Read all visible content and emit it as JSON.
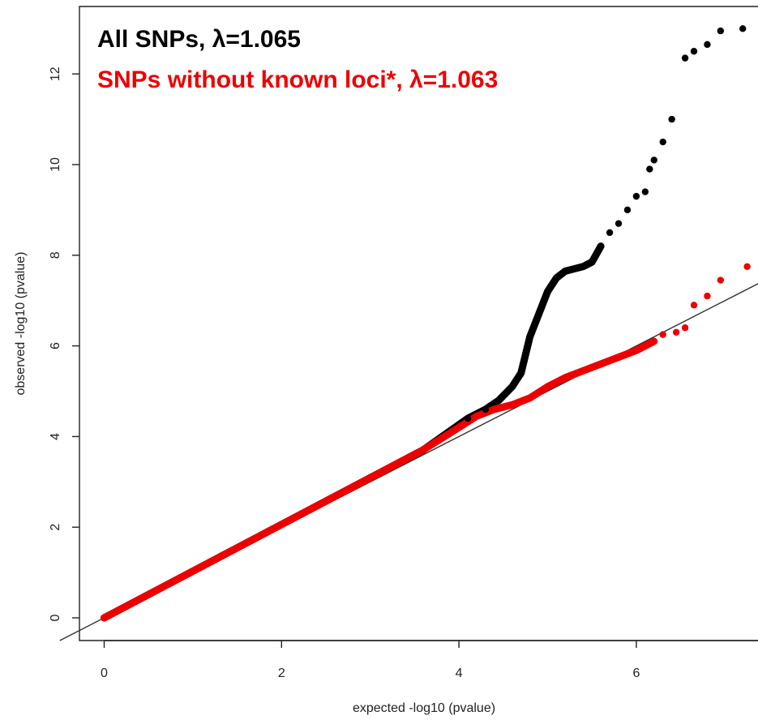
{
  "chart_data": {
    "type": "scatter",
    "xlabel": "expected -log10 (pvalue)",
    "ylabel": "observed -log10 (pvalue)",
    "xlim": [
      -0.5,
      7.4
    ],
    "ylim": [
      -0.5,
      13.3
    ],
    "x_ticks": [
      "0",
      "2",
      "4",
      "6"
    ],
    "y_ticks": [
      "0",
      "2",
      "4",
      "6",
      "8",
      "10",
      "12"
    ],
    "reference_line": "y = x",
    "grid": false,
    "legend_position": "top-left",
    "series": [
      {
        "name": "All SNPs, λ=1.065",
        "color": "#000000",
        "x": [
          4.1,
          4.3,
          4.45,
          4.6,
          4.7,
          4.8,
          4.9,
          5.0,
          5.1,
          5.2,
          5.3,
          5.4,
          5.5,
          5.6,
          5.7,
          5.8,
          5.9,
          6.0,
          6.1,
          6.15,
          6.2,
          6.3,
          6.4,
          6.55,
          6.65,
          6.8,
          6.95,
          7.2
        ],
        "y": [
          4.4,
          4.6,
          4.8,
          5.1,
          5.4,
          6.2,
          6.7,
          7.2,
          7.5,
          7.65,
          7.7,
          7.75,
          7.85,
          8.2,
          8.5,
          8.7,
          9.0,
          9.3,
          9.4,
          9.9,
          10.1,
          10.5,
          11.0,
          12.35,
          12.5,
          12.65,
          12.95,
          13.0
        ]
      },
      {
        "name": "SNPs without known loci*, λ=1.063",
        "color": "#ee0000",
        "x": [
          4.0,
          4.2,
          4.4,
          4.6,
          4.8,
          5.0,
          5.2,
          5.4,
          5.6,
          5.8,
          6.0,
          6.1,
          6.2,
          6.3,
          6.45,
          6.55,
          6.65,
          6.8,
          6.95,
          7.25
        ],
        "y": [
          4.2,
          4.45,
          4.6,
          4.7,
          4.85,
          5.1,
          5.3,
          5.45,
          5.6,
          5.75,
          5.9,
          6.0,
          6.1,
          6.25,
          6.3,
          6.4,
          6.9,
          7.1,
          7.45,
          7.75
        ]
      }
    ]
  }
}
